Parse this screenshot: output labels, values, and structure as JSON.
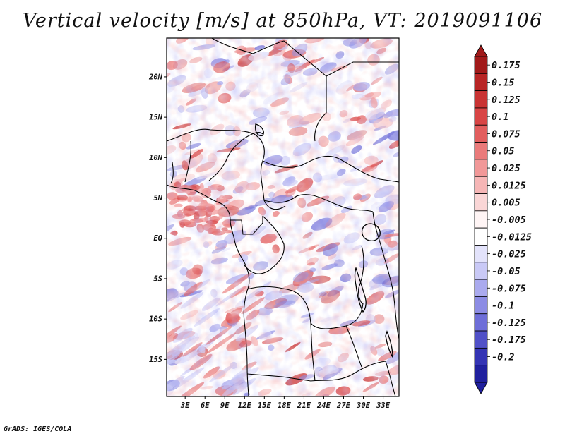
{
  "title": "Vertical velocity [m/s] at 850hPa, VT: 2019091106",
  "credit": "GrADS: IGES/COLA",
  "map": {
    "variable": "Vertical velocity",
    "units": "m/s",
    "level": "850hPa",
    "valid_time": "2019091106",
    "lat_ticks": [
      "20N",
      "15N",
      "10N",
      "5N",
      "EQ",
      "5S",
      "10S",
      "15S"
    ],
    "lat_values": [
      20,
      15,
      10,
      5,
      0,
      -5,
      -10,
      -15
    ],
    "lon_ticks": [
      "3E",
      "6E",
      "9E",
      "12E",
      "15E",
      "18E",
      "21E",
      "24E",
      "27E",
      "30E",
      "33E"
    ],
    "lon_values": [
      3,
      6,
      9,
      12,
      15,
      18,
      21,
      24,
      27,
      30,
      33
    ]
  },
  "colorbar": {
    "labels": [
      "0.175",
      "0.15",
      "0.125",
      "0.1",
      "0.075",
      "0.05",
      "0.025",
      "0.0125",
      "0.005",
      "-0.005",
      "-0.0125",
      "-0.025",
      "-0.05",
      "-0.075",
      "-0.1",
      "-0.125",
      "-0.175",
      "-0.2"
    ],
    "colors": [
      "#a11a1a",
      "#b82525",
      "#c93333",
      "#d84545",
      "#e25e5e",
      "#ea7a7a",
      "#f19898",
      "#f6b6b6",
      "#fad6d6",
      "#fff5f5",
      "#ffffff",
      "#e3e3fb",
      "#c9c9f6",
      "#aaaaee",
      "#8c8ce4",
      "#6e6ed8",
      "#5050c8",
      "#3434b4",
      "#20209e"
    ]
  }
}
